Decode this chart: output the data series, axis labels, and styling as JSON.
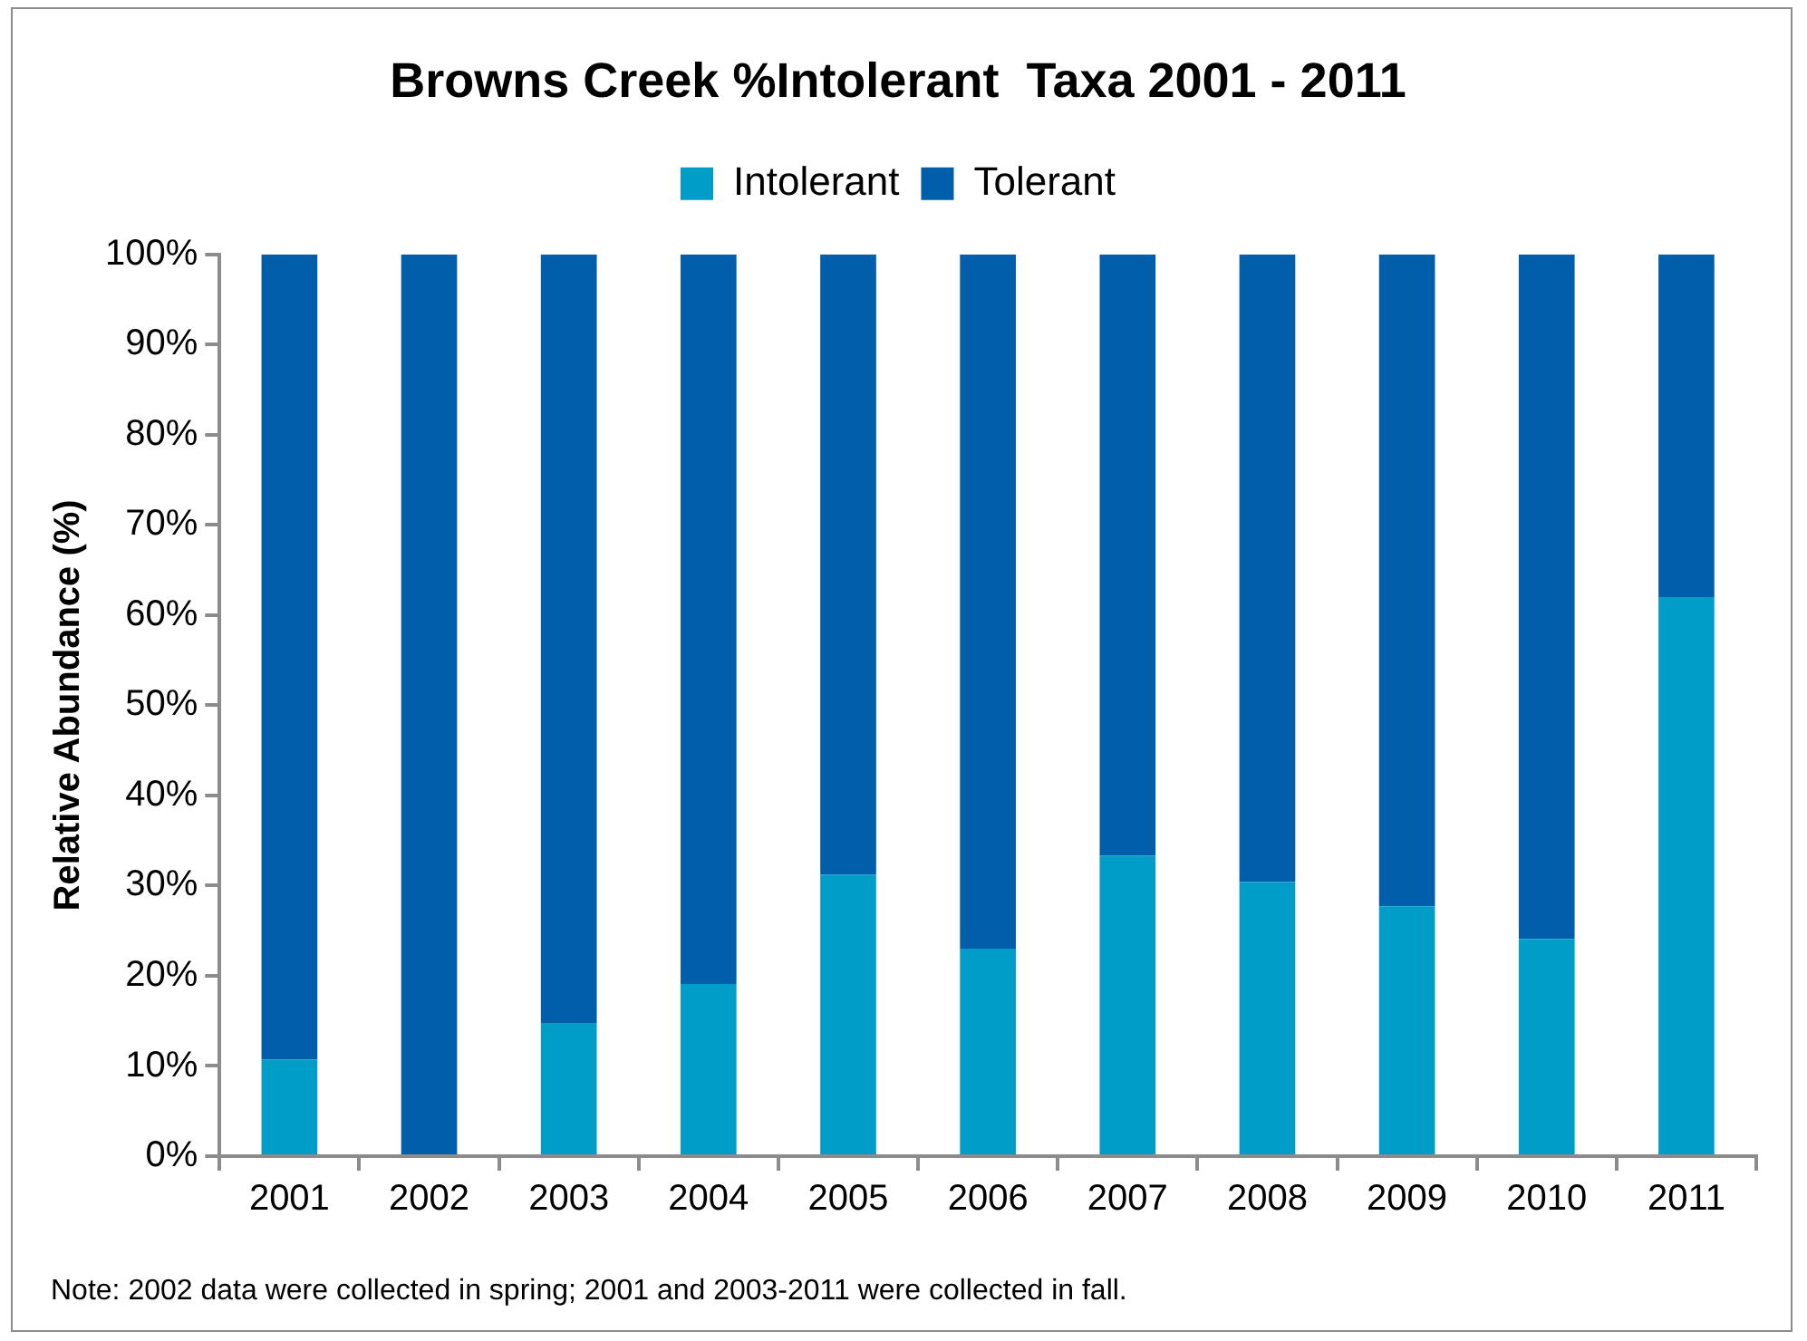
{
  "chart_data": {
    "type": "bar",
    "title": "Browns Creek %Intolerant  Taxa 2001 - 2011",
    "ylabel": "Relative Abundance (%)",
    "categories": [
      "2001",
      "2002",
      "2003",
      "2004",
      "2005",
      "2006",
      "2007",
      "2008",
      "2009",
      "2010",
      "2011"
    ],
    "series": [
      {
        "name": "Intolerant",
        "color": "#009dc9",
        "values": [
          10.7,
          0,
          14.7,
          19.1,
          31.2,
          23.0,
          33.3,
          30.4,
          27.7,
          24.1,
          62.0
        ]
      },
      {
        "name": "Tolerant",
        "color": "#005eab",
        "values": [
          89.3,
          100,
          85.3,
          80.9,
          68.8,
          77.0,
          66.7,
          69.6,
          72.3,
          75.9,
          38.0
        ]
      }
    ],
    "stacked": true,
    "ylim": [
      0,
      100
    ],
    "yticks": [
      {
        "value": 0,
        "label": "0%"
      },
      {
        "value": 10,
        "label": "10%"
      },
      {
        "value": 20,
        "label": "20%"
      },
      {
        "value": 30,
        "label": "30%"
      },
      {
        "value": 40,
        "label": "40%"
      },
      {
        "value": 50,
        "label": "50%"
      },
      {
        "value": 60,
        "label": "60%"
      },
      {
        "value": 70,
        "label": "70%"
      },
      {
        "value": 80,
        "label": "80%"
      },
      {
        "value": 90,
        "label": "90%"
      },
      {
        "value": 100,
        "label": "100%"
      }
    ],
    "grid": false,
    "legend": "top",
    "annotations": [
      "Note: 2002 data were collected in spring; 2001 and 2003-2011 were collected in fall."
    ]
  }
}
